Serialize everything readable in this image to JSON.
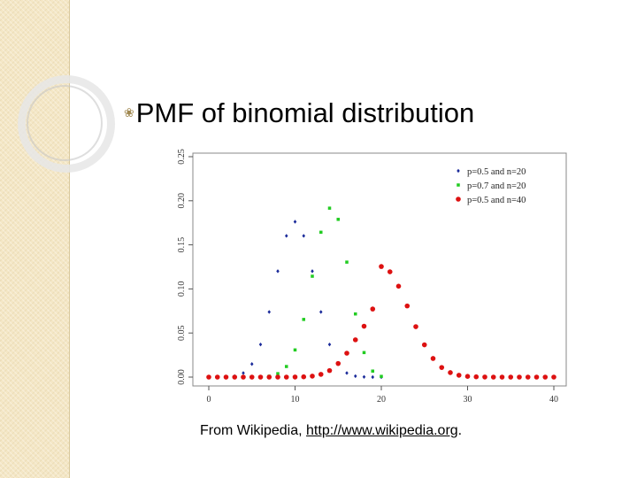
{
  "slide": {
    "title": "PMF of binomial distribution",
    "caption_prefix": "From Wikipedia, ",
    "caption_link": "http://www.wikipedia.org",
    "caption_suffix": "."
  },
  "chart_data": {
    "type": "scatter",
    "title": "",
    "xlabel": "",
    "ylabel": "",
    "xlim": [
      0,
      40
    ],
    "ylim": [
      0,
      0.25
    ],
    "x_ticks": [
      0,
      10,
      20,
      30,
      40
    ],
    "y_ticks": [
      0.0,
      0.05,
      0.1,
      0.15,
      0.2,
      0.25
    ],
    "x_tick_labels": [
      "0",
      "10",
      "20",
      "30",
      "40"
    ],
    "y_tick_labels": [
      "0.00",
      "0.05",
      "0.10",
      "0.15",
      "0.20",
      "0.25"
    ],
    "grid": false,
    "legend_position": "top-right",
    "series": [
      {
        "name": "p=0.5 and n=20",
        "color": "#1a2a9a",
        "marker": "diamond",
        "x": [
          0,
          1,
          2,
          3,
          4,
          5,
          6,
          7,
          8,
          9,
          10,
          11,
          12,
          13,
          14,
          15,
          16,
          17,
          18,
          19,
          20
        ],
        "y": [
          0.0,
          0.0,
          0.0002,
          0.0011,
          0.0046,
          0.0148,
          0.037,
          0.0739,
          0.1201,
          0.1602,
          0.1762,
          0.1602,
          0.1201,
          0.0739,
          0.037,
          0.0148,
          0.0046,
          0.0011,
          0.0002,
          0.0,
          0.0
        ]
      },
      {
        "name": "p=0.7 and n=20",
        "color": "#22cc22",
        "marker": "square",
        "x": [
          0,
          1,
          2,
          3,
          4,
          5,
          6,
          7,
          8,
          9,
          10,
          11,
          12,
          13,
          14,
          15,
          16,
          17,
          18,
          19,
          20
        ],
        "y": [
          0.0,
          0.0,
          0.0,
          0.0,
          0.0,
          0.0,
          0.0002,
          0.001,
          0.0039,
          0.012,
          0.0308,
          0.0654,
          0.1144,
          0.1643,
          0.1916,
          0.1789,
          0.1304,
          0.0716,
          0.0278,
          0.0068,
          0.0008
        ]
      },
      {
        "name": "p=0.5 and n=40",
        "color": "#dd1111",
        "marker": "circle",
        "x": [
          0,
          1,
          2,
          3,
          4,
          5,
          6,
          7,
          8,
          9,
          10,
          11,
          12,
          13,
          14,
          15,
          16,
          17,
          18,
          19,
          20,
          21,
          22,
          23,
          24,
          25,
          26,
          27,
          28,
          29,
          30,
          31,
          32,
          33,
          34,
          35,
          36,
          37,
          38,
          39,
          40
        ],
        "y": [
          0,
          0,
          0,
          0,
          0,
          0,
          0,
          0,
          0,
          0,
          0.0001,
          0.0003,
          0.0011,
          0.0031,
          0.0074,
          0.0154,
          0.0271,
          0.0423,
          0.0577,
          0.0772,
          0.1254,
          0.1194,
          0.1031,
          0.0807,
          0.0572,
          0.0366,
          0.0211,
          0.0109,
          0.0051,
          0.0021,
          0.0008,
          0.0003,
          0.0001,
          0,
          0,
          0,
          0,
          0,
          0,
          0,
          0
        ]
      }
    ]
  }
}
